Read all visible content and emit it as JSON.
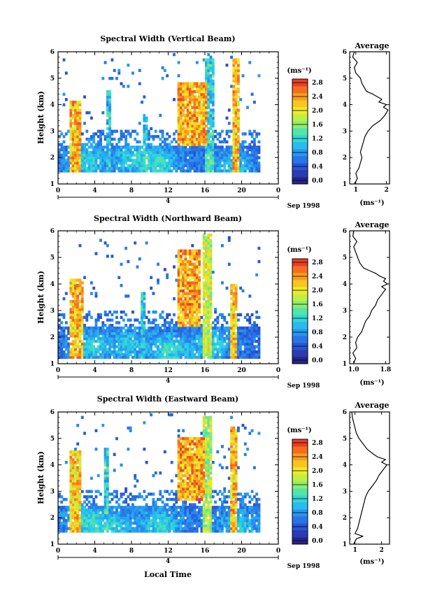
{
  "chart_data": [
    {
      "type": "heatmap",
      "title": "Spectral Width (Vertical Beam)",
      "xlabel": "",
      "ylabel": "Height (km)",
      "xlim": [
        0,
        24
      ],
      "ylim": [
        1,
        6
      ],
      "x_ticks": [
        "0",
        "4",
        "8",
        "12",
        "16",
        "20",
        "0"
      ],
      "y_ticks": [
        "1",
        "2",
        "3",
        "4",
        "5",
        "6"
      ],
      "date_axis": {
        "day_label": "4",
        "month_label": "Sep 1998"
      },
      "colorbar": {
        "unit": "(ms⁻¹)",
        "min": 0.0,
        "max": 3.0,
        "ticks": [
          "0.0",
          "0.4",
          "0.8",
          "1.2",
          "1.6",
          "2.0",
          "2.4",
          "2.8"
        ]
      },
      "data_coverage": {
        "x_range_hours": [
          0,
          22
        ],
        "y_range_km": [
          1.45,
          5.85
        ]
      },
      "field_model": {
        "base": 0.7,
        "low_level_blobs": [
          [
            3,
            1.8,
            0.6
          ],
          [
            8,
            1.9,
            0.5
          ],
          [
            11,
            1.7,
            0.6
          ],
          [
            19,
            1.6,
            0.5
          ]
        ],
        "high_columns": [
          {
            "x": 1.8,
            "width": 0.6,
            "y_low": 1.45,
            "y_high": 4.1,
            "value": 2.8
          },
          {
            "x": 5.3,
            "width": 0.25,
            "y_low": 1.45,
            "y_high": 4.5,
            "value": 1.6
          },
          {
            "x": 9.3,
            "width": 0.25,
            "y_low": 1.45,
            "y_high": 3.6,
            "value": 1.6
          },
          {
            "x": 14.4,
            "width": 1.6,
            "y_low": 2.4,
            "y_high": 4.8,
            "value": 2.9
          },
          {
            "x": 16.3,
            "width": 0.5,
            "y_low": 1.45,
            "y_high": 5.7,
            "value": 1.7
          },
          {
            "x": 19.2,
            "width": 0.35,
            "y_low": 1.45,
            "y_high": 5.7,
            "value": 2.8
          }
        ]
      },
      "average_profile": {
        "title": "Average",
        "xlabel": "(ms⁻¹)",
        "xlim": [
          0.8,
          2.1
        ],
        "x_ticks": [
          "1",
          "2"
        ],
        "y_ticks": [
          "1",
          "2",
          "3",
          "4",
          "5",
          "6"
        ],
        "ylim": [
          1,
          6
        ],
        "heights": [
          1.0,
          1.2,
          1.4,
          1.6,
          1.8,
          2.0,
          2.2,
          2.4,
          2.6,
          2.8,
          3.0,
          3.2,
          3.4,
          3.6,
          3.8,
          3.9,
          4.0,
          4.1,
          4.2,
          4.3,
          4.4,
          4.5,
          4.6,
          4.8,
          5.0,
          5.2,
          5.4,
          5.6,
          5.8,
          6.0
        ],
        "values": [
          0.95,
          1.05,
          1.0,
          1.1,
          1.15,
          1.2,
          1.15,
          1.2,
          1.25,
          1.3,
          1.4,
          1.55,
          1.8,
          1.95,
          2.05,
          1.9,
          2.0,
          1.75,
          1.85,
          1.7,
          1.55,
          1.35,
          1.3,
          1.2,
          1.15,
          1.0,
          0.95,
          1.05,
          0.9,
          0.95
        ]
      }
    },
    {
      "type": "heatmap",
      "title": "Spectral Width (Northward Beam)",
      "xlabel": "",
      "ylabel": "Height (km)",
      "xlim": [
        0,
        24
      ],
      "ylim": [
        1,
        6
      ],
      "x_ticks": [
        "0",
        "4",
        "8",
        "12",
        "16",
        "20",
        "0"
      ],
      "y_ticks": [
        "1",
        "2",
        "3",
        "4",
        "5",
        "6"
      ],
      "date_axis": {
        "day_label": "4",
        "month_label": "Sep 1998"
      },
      "colorbar": {
        "unit": "(ms⁻¹)",
        "min": 0.0,
        "max": 3.0,
        "ticks": [
          "0.0",
          "0.4",
          "0.8",
          "1.2",
          "1.6",
          "2.0",
          "2.4",
          "2.8"
        ]
      },
      "data_coverage": {
        "x_range_hours": [
          0,
          22
        ],
        "y_range_km": [
          1.2,
          5.85
        ]
      },
      "field_model": {
        "base": 0.65,
        "low_level_blobs": [
          [
            3.5,
            1.6,
            0.6
          ],
          [
            7.5,
            1.7,
            0.5
          ],
          [
            12,
            1.5,
            0.7
          ],
          [
            16.5,
            1.7,
            0.6
          ]
        ],
        "high_columns": [
          {
            "x": 1.8,
            "width": 0.7,
            "y_low": 1.2,
            "y_high": 4.2,
            "value": 2.8
          },
          {
            "x": 9.2,
            "width": 0.25,
            "y_low": 1.2,
            "y_high": 3.7,
            "value": 1.6
          },
          {
            "x": 14.2,
            "width": 1.2,
            "y_low": 2.4,
            "y_high": 5.2,
            "value": 2.9
          },
          {
            "x": 16.2,
            "width": 0.5,
            "y_low": 1.2,
            "y_high": 5.8,
            "value": 2.4
          },
          {
            "x": 19.0,
            "width": 0.35,
            "y_low": 1.2,
            "y_high": 4.0,
            "value": 2.8
          }
        ]
      },
      "average_profile": {
        "title": "Average",
        "xlabel": "(ms⁻¹)",
        "xlim": [
          0.9,
          1.9
        ],
        "x_ticks": [
          "1.0",
          "1.8"
        ],
        "y_ticks": [
          "1",
          "2",
          "3",
          "4",
          "5",
          "6"
        ],
        "ylim": [
          1,
          6
        ],
        "heights": [
          1.0,
          1.2,
          1.4,
          1.6,
          1.8,
          2.0,
          2.2,
          2.4,
          2.6,
          2.8,
          3.0,
          3.2,
          3.4,
          3.6,
          3.8,
          3.9,
          4.0,
          4.1,
          4.2,
          4.3,
          4.4,
          4.5,
          4.6,
          4.8,
          5.0,
          5.2,
          5.4,
          5.6,
          5.8,
          6.0
        ],
        "values": [
          1.0,
          1.05,
          0.98,
          1.08,
          1.05,
          1.1,
          1.2,
          1.25,
          1.3,
          1.4,
          1.45,
          1.55,
          1.6,
          1.7,
          1.8,
          1.7,
          1.85,
          1.75,
          1.8,
          1.65,
          1.55,
          1.4,
          1.25,
          1.15,
          1.1,
          1.05,
          1.0,
          1.08,
          0.98,
          1.0
        ]
      }
    },
    {
      "type": "heatmap",
      "title": "Spectral Width (Eastward Beam)",
      "xlabel": "Local Time",
      "ylabel": "Height (km)",
      "xlim": [
        0,
        24
      ],
      "ylim": [
        1,
        6
      ],
      "x_ticks": [
        "0",
        "4",
        "8",
        "12",
        "16",
        "20",
        "0"
      ],
      "y_ticks": [
        "1",
        "2",
        "3",
        "4",
        "5",
        "6"
      ],
      "date_axis": {
        "day_label": "4",
        "month_label": "Sep 1998"
      },
      "colorbar": {
        "unit": "(ms⁻¹)",
        "min": 0.0,
        "max": 3.0,
        "ticks": [
          "0.0",
          "0.4",
          "0.8",
          "1.2",
          "1.6",
          "2.0",
          "2.4",
          "2.8"
        ]
      },
      "data_coverage": {
        "x_range_hours": [
          0,
          22
        ],
        "y_range_km": [
          1.45,
          5.85
        ]
      },
      "field_model": {
        "base": 0.7,
        "low_level_blobs": [
          [
            3,
            1.8,
            0.6
          ],
          [
            6,
            1.6,
            0.5
          ],
          [
            11,
            1.7,
            0.6
          ],
          [
            19.5,
            1.6,
            0.5
          ]
        ],
        "high_columns": [
          {
            "x": 1.8,
            "width": 0.6,
            "y_low": 1.45,
            "y_high": 4.5,
            "value": 2.7
          },
          {
            "x": 5.2,
            "width": 0.25,
            "y_low": 1.45,
            "y_high": 4.6,
            "value": 1.7
          },
          {
            "x": 14.3,
            "width": 1.5,
            "y_low": 2.6,
            "y_high": 5.0,
            "value": 2.9
          },
          {
            "x": 16.2,
            "width": 0.5,
            "y_low": 1.45,
            "y_high": 5.8,
            "value": 2.3
          },
          {
            "x": 19.0,
            "width": 0.35,
            "y_low": 1.45,
            "y_high": 5.4,
            "value": 2.8
          }
        ]
      },
      "average_profile": {
        "title": "Average",
        "xlabel": "(ms⁻¹)",
        "xlim": [
          0.8,
          2.3
        ],
        "x_ticks": [
          "1",
          "2"
        ],
        "y_ticks": [
          "1",
          "2",
          "3",
          "4",
          "5",
          "6"
        ],
        "ylim": [
          1,
          6
        ],
        "heights": [
          1.0,
          1.2,
          1.3,
          1.4,
          1.6,
          1.8,
          2.0,
          2.2,
          2.4,
          2.6,
          2.8,
          3.0,
          3.2,
          3.4,
          3.6,
          3.8,
          4.0,
          4.1,
          4.2,
          4.3,
          4.4,
          4.6,
          4.8,
          5.0,
          5.2,
          5.4,
          5.6,
          5.8,
          6.0
        ],
        "values": [
          0.95,
          1.05,
          1.3,
          1.0,
          1.1,
          1.15,
          1.2,
          1.25,
          1.3,
          1.35,
          1.4,
          1.5,
          1.65,
          1.8,
          1.9,
          2.05,
          2.2,
          2.0,
          2.15,
          1.85,
          1.7,
          1.45,
          1.3,
          1.15,
          1.05,
          1.0,
          0.95,
          0.9,
          0.88
        ]
      }
    }
  ]
}
